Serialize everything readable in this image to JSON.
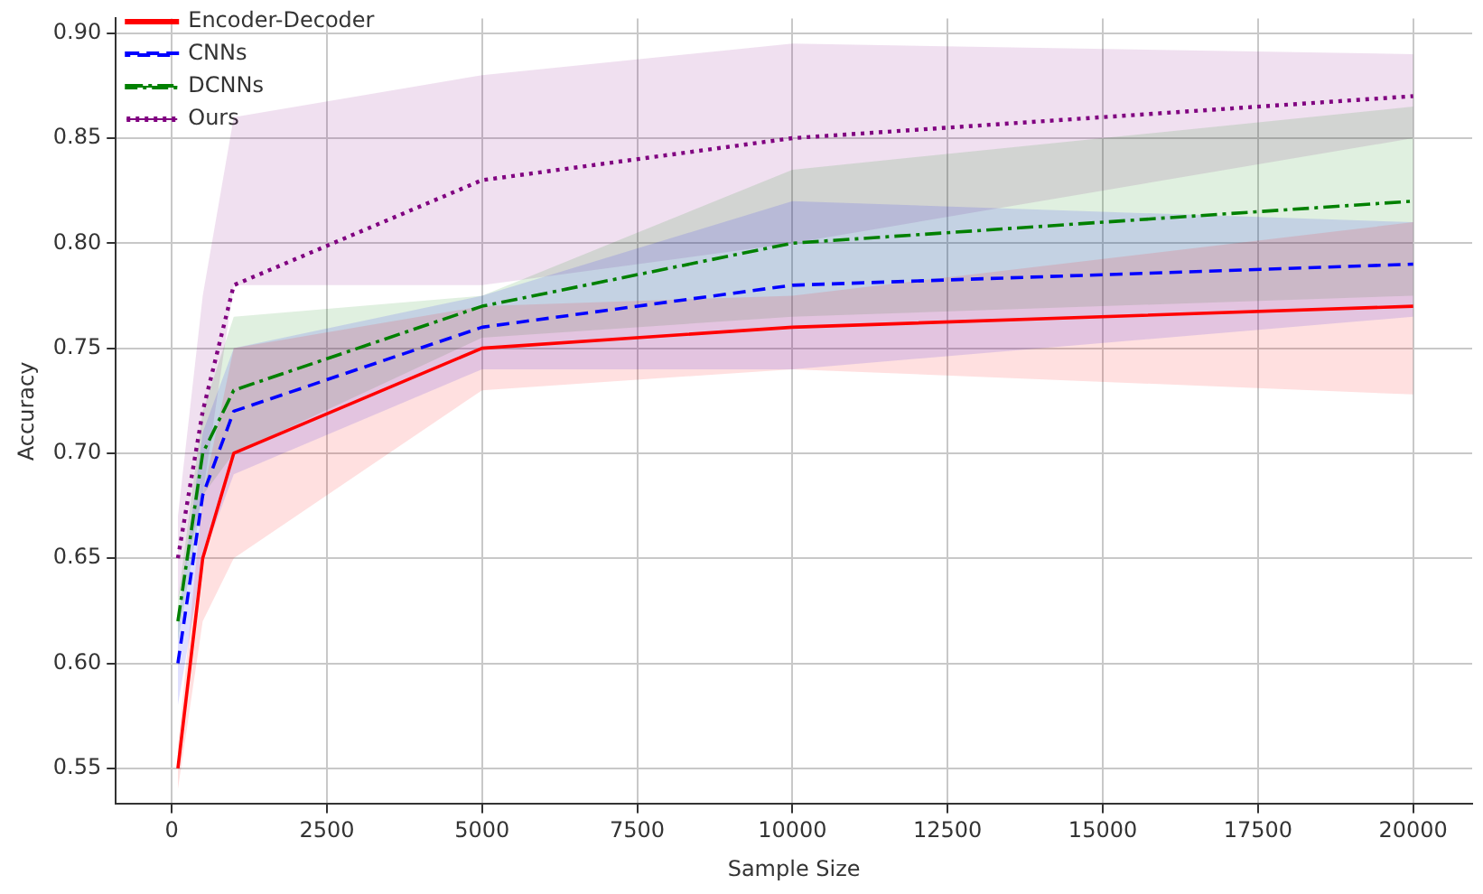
{
  "chart_data": {
    "type": "line",
    "xlabel": "Sample Size",
    "ylabel": "Accuracy",
    "x": [
      100,
      500,
      1000,
      5000,
      10000,
      20000
    ],
    "series": [
      {
        "name": "Encoder-Decoder",
        "color": "#ff0000",
        "line_style": "solid",
        "values": [
          0.55,
          0.65,
          0.7,
          0.75,
          0.76,
          0.77
        ],
        "lower": [
          0.54,
          0.62,
          0.65,
          0.73,
          0.74,
          0.728
        ],
        "upper": [
          0.56,
          0.68,
          0.75,
          0.77,
          0.775,
          0.81
        ]
      },
      {
        "name": "CNNs",
        "color": "#0000ff",
        "line_style": "dashed",
        "values": [
          0.6,
          0.68,
          0.72,
          0.76,
          0.78,
          0.79
        ],
        "lower": [
          0.58,
          0.65,
          0.69,
          0.74,
          0.74,
          0.765
        ],
        "upper": [
          0.62,
          0.71,
          0.75,
          0.775,
          0.82,
          0.81
        ]
      },
      {
        "name": "DCNNs",
        "color": "#008000",
        "line_style": "dashdot",
        "values": [
          0.62,
          0.7,
          0.73,
          0.77,
          0.8,
          0.82
        ],
        "lower": [
          0.61,
          0.68,
          0.7,
          0.755,
          0.765,
          0.775
        ],
        "upper": [
          0.63,
          0.72,
          0.765,
          0.775,
          0.835,
          0.865
        ]
      },
      {
        "name": "Ours",
        "color": "#800080",
        "line_style": "dotted",
        "values": [
          0.65,
          0.72,
          0.78,
          0.83,
          0.85,
          0.87
        ],
        "lower": [
          0.63,
          0.68,
          0.78,
          0.78,
          0.8,
          0.85
        ],
        "upper": [
          0.67,
          0.775,
          0.86,
          0.88,
          0.895,
          0.89
        ]
      }
    ],
    "xlim": [
      -900,
      20950
    ],
    "xticks": [
      0,
      2500,
      5000,
      7500,
      10000,
      12500,
      15000,
      17500,
      20000
    ],
    "ylim": [
      0.533,
      0.907
    ],
    "yticks": [
      {
        "value": 0.55,
        "label": "0.55"
      },
      {
        "value": 0.6,
        "label": "0.60"
      },
      {
        "value": 0.65,
        "label": "0.65"
      },
      {
        "value": 0.7,
        "label": "0.70"
      },
      {
        "value": 0.75,
        "label": "0.75"
      },
      {
        "value": 0.8,
        "label": "0.80"
      },
      {
        "value": 0.85,
        "label": "0.85"
      },
      {
        "value": 0.9,
        "label": "0.90"
      }
    ],
    "grid": true,
    "legend": "top left"
  }
}
